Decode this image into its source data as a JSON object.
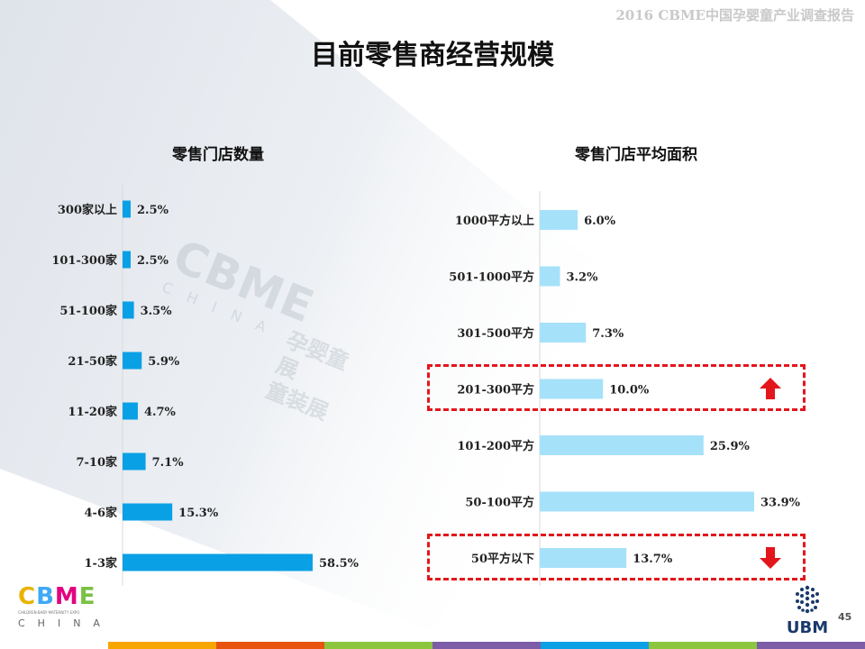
{
  "header": {
    "report_tag": "2016 CBME中国孕婴童产业调查报告",
    "title": "目前零售商经营规模"
  },
  "charts": {
    "left": {
      "title": "零售门店数量"
    },
    "right": {
      "title": "零售门店平均面积"
    }
  },
  "chart_data": [
    {
      "type": "bar",
      "orientation": "horizontal",
      "title": "零售门店数量",
      "categories": [
        "300家以上",
        "101-300家",
        "51-100家",
        "21-50家",
        "11-20家",
        "7-10家",
        "4-6家",
        "1-3家"
      ],
      "values": [
        2.5,
        2.5,
        3.5,
        5.9,
        4.7,
        7.1,
        15.3,
        58.5
      ],
      "value_labels": [
        "2.5%",
        "2.5%",
        "3.5%",
        "5.9%",
        "4.7%",
        "7.1%",
        "15.3%",
        "58.5%"
      ],
      "unit": "%",
      "color": "#0aa0e6",
      "grid": false
    },
    {
      "type": "bar",
      "orientation": "horizontal",
      "title": "零售门店平均面积",
      "categories": [
        "1000平方以上",
        "501-1000平方",
        "301-500平方",
        "201-300平方",
        "101-200平方",
        "50-100平方",
        "50平方以下"
      ],
      "values": [
        6.0,
        3.2,
        7.3,
        10.0,
        25.9,
        33.9,
        13.7
      ],
      "value_labels": [
        "6.0%",
        "3.2%",
        "7.3%",
        "10.0%",
        "25.9%",
        "33.9%",
        "13.7%"
      ],
      "unit": "%",
      "color": "#a6e1fa",
      "grid": false,
      "highlights": [
        {
          "category": "201-300平方",
          "trend": "up"
        },
        {
          "category": "50平方以下",
          "trend": "down"
        }
      ]
    }
  ],
  "watermark": {
    "logo": "CBME",
    "sub": "CHINA",
    "cn_line1": "孕婴童展",
    "cn_line2": "童装展"
  },
  "logos": {
    "cbme_letters": [
      "C",
      "B",
      "M",
      "E"
    ],
    "cbme_colors": [
      "#e8b400",
      "#3fa9f5",
      "#e4007f",
      "#7ac143"
    ],
    "cbme_tagline": "CHILDREN·BABY·MATERNITY EXPO",
    "cbme_china": "CHINA",
    "ubm": "UBM"
  },
  "page_number": "45",
  "colors": {
    "arrow_red": "#e3161c",
    "strip": [
      "#f7a600",
      "#e8540f",
      "#8cc63f",
      "#7d5ca8",
      "#0aa0e6",
      "#8cc63f",
      "#7d5ca8"
    ]
  }
}
